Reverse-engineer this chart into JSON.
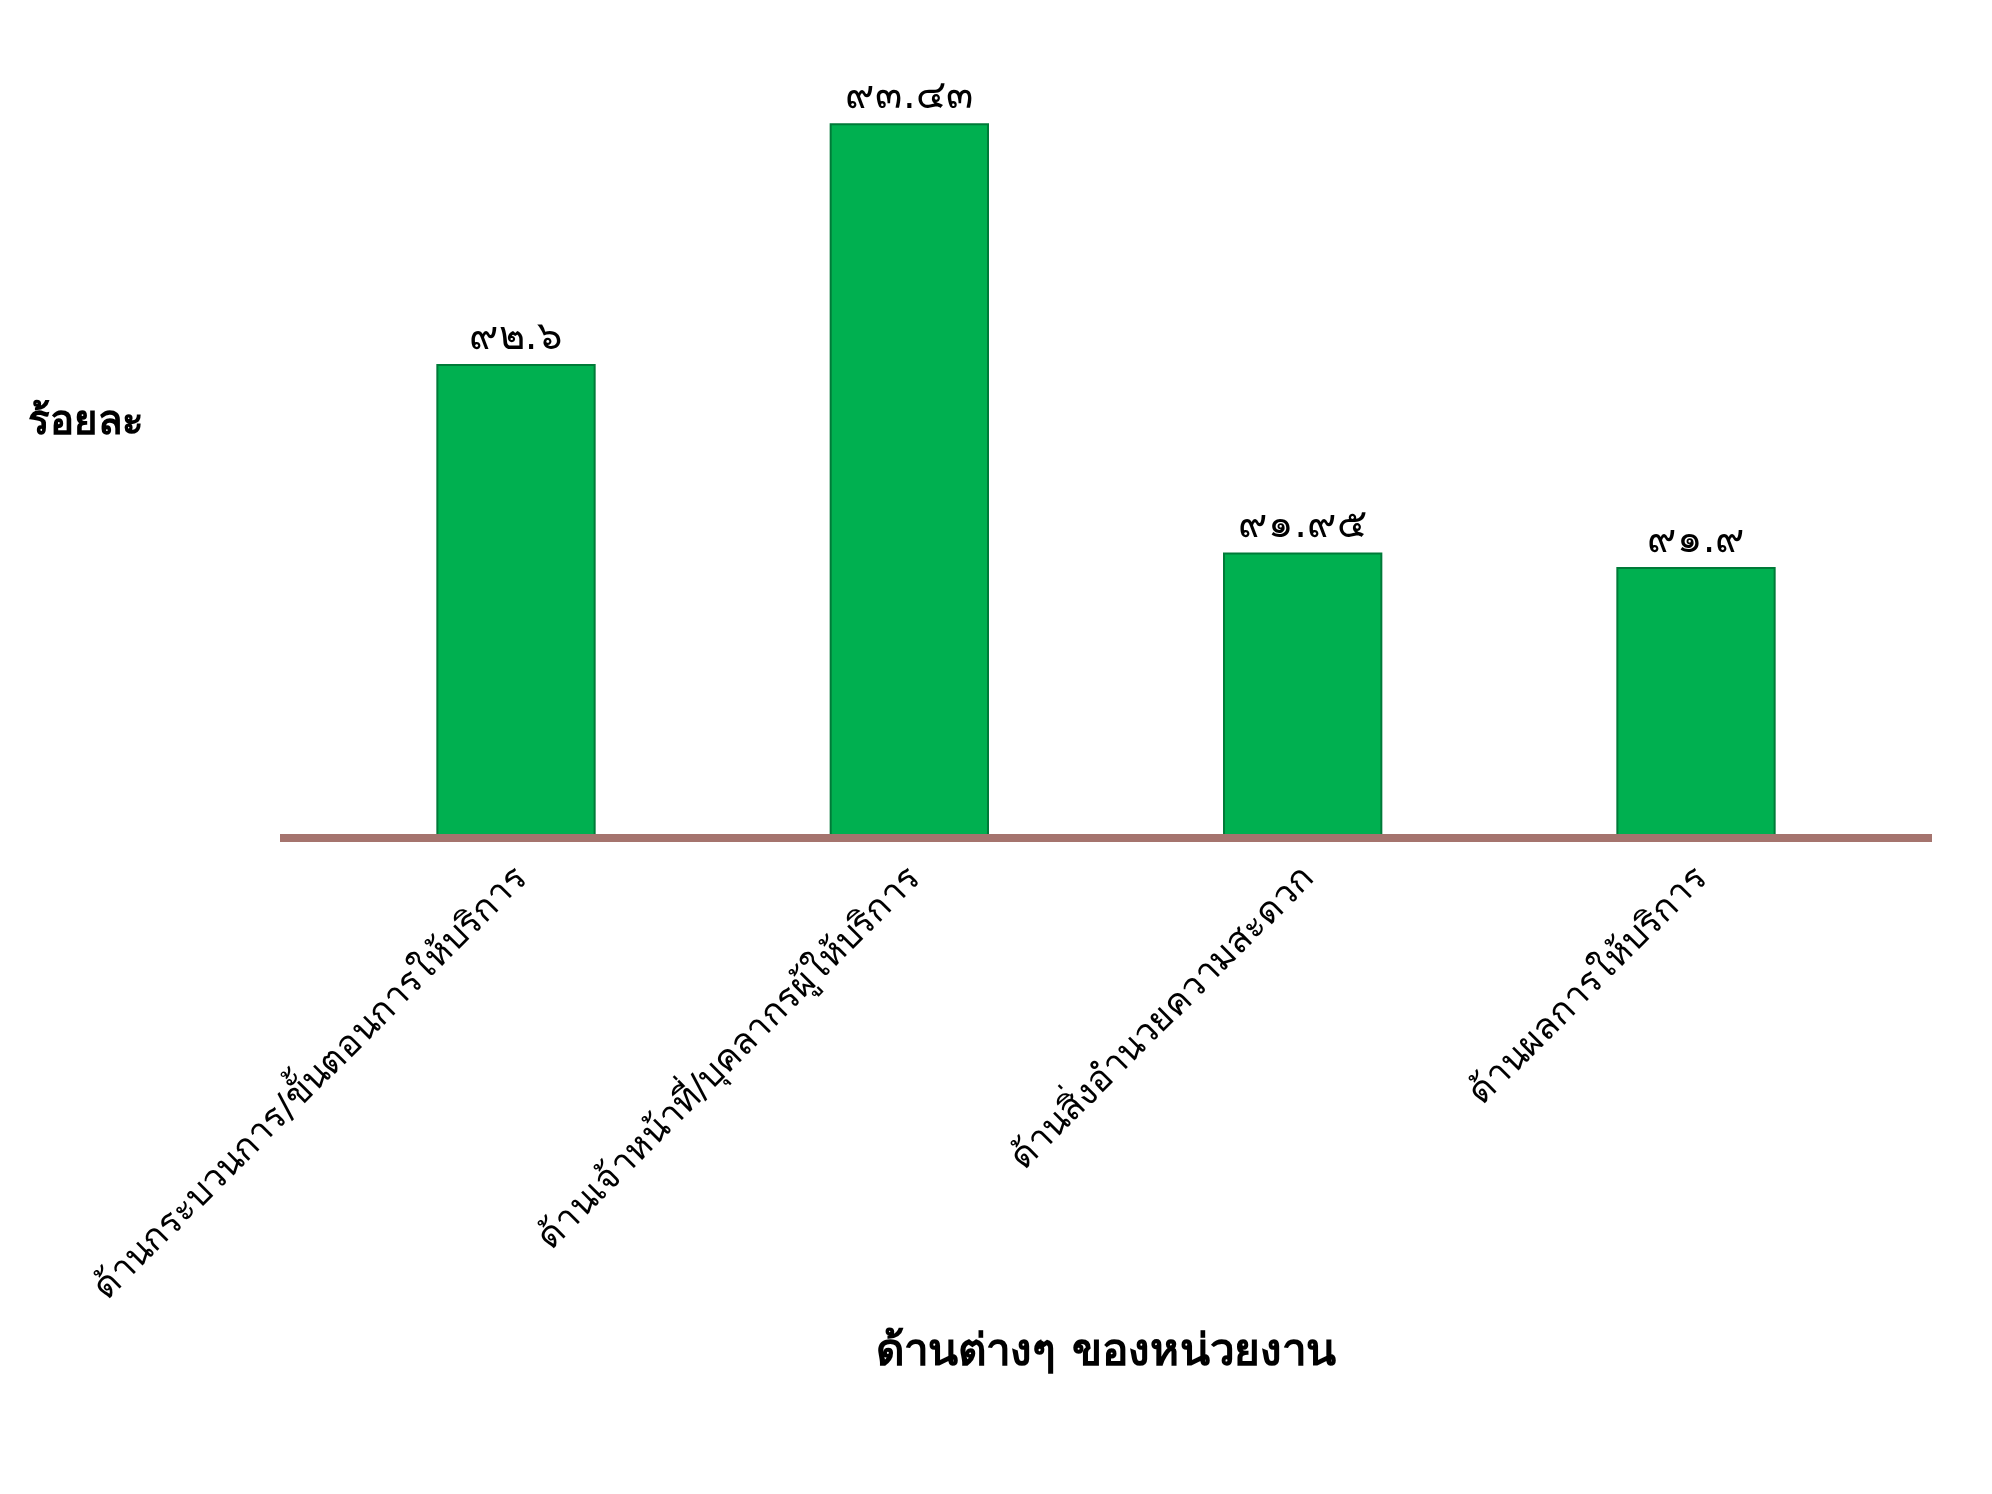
{
  "chart_data": {
    "type": "bar",
    "xlabel": "ด้านต่างๆ ของหน่วยงาน",
    "ylabel": "ร้อยละ",
    "categories": [
      "ด้านกระบวนการ/ขั้นตอนการให้บริการ",
      "ด้านเจ้าหน้าที่/บุคลากรผู้ให้บริการ",
      "ด้านสิ่งอำนวยความสะดวก",
      "ด้านผลการให้บริการ"
    ],
    "values": [
      92.6,
      93.43,
      91.95,
      91.9
    ],
    "value_labels": [
      "๙๒.๖",
      "๙๓.๔๓",
      "๙๑.๙๕",
      "๙๑.๙"
    ],
    "color": "#00b050",
    "legend": false
  }
}
